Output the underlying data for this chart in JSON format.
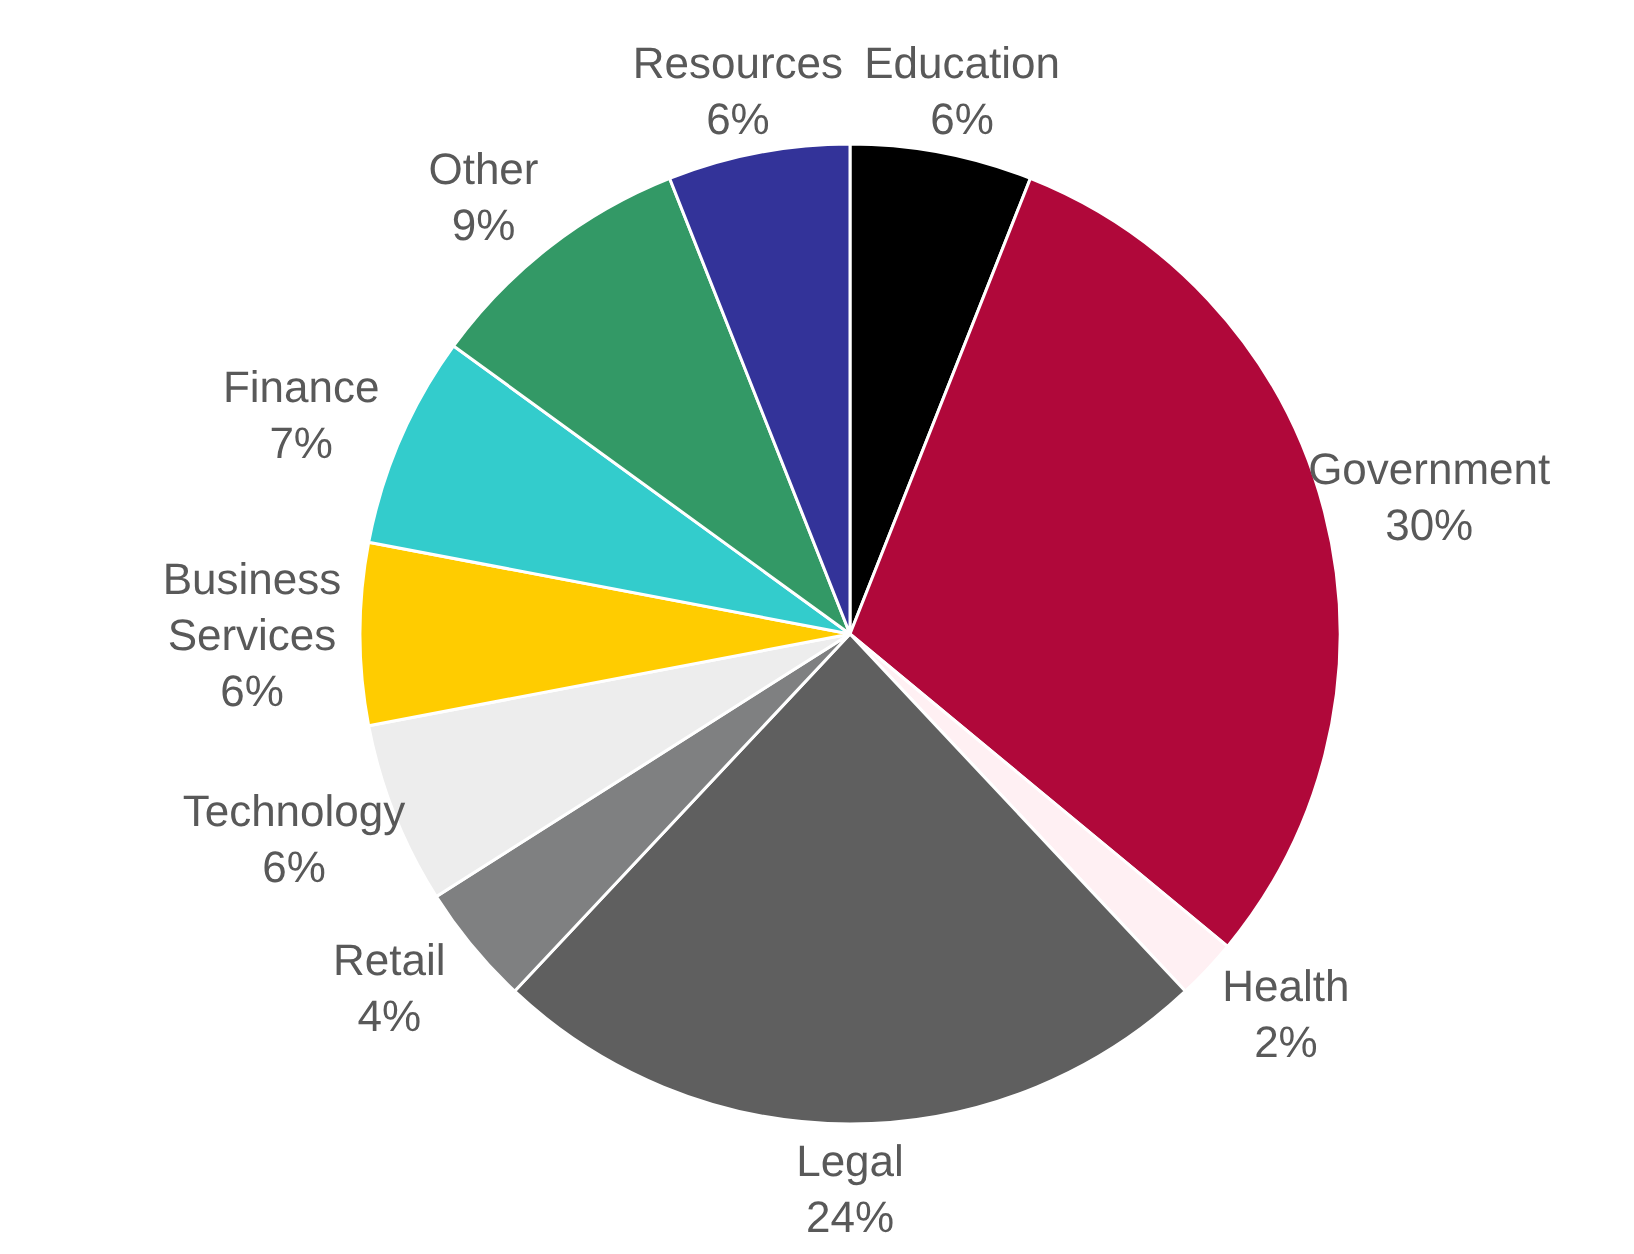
{
  "chart_data": {
    "type": "pie",
    "categories": [
      "Education",
      "Government",
      "Health",
      "Legal",
      "Retail",
      "Technology",
      "Business Services",
      "Finance",
      "Other",
      "Resources"
    ],
    "values": [
      6,
      30,
      2,
      24,
      4,
      6,
      6,
      7,
      9,
      6
    ],
    "value_labels": [
      "6%",
      "30%",
      "2%",
      "24%",
      "4%",
      "6%",
      "6%",
      "7%",
      "9%",
      "6%"
    ],
    "colors": [
      "#000000",
      "#b0083a",
      "#fff0f3",
      "#5f5f5f",
      "#7f8081",
      "#ededed",
      "#ffcc00",
      "#33cccc",
      "#339966",
      "#333399"
    ],
    "legend": false
  }
}
